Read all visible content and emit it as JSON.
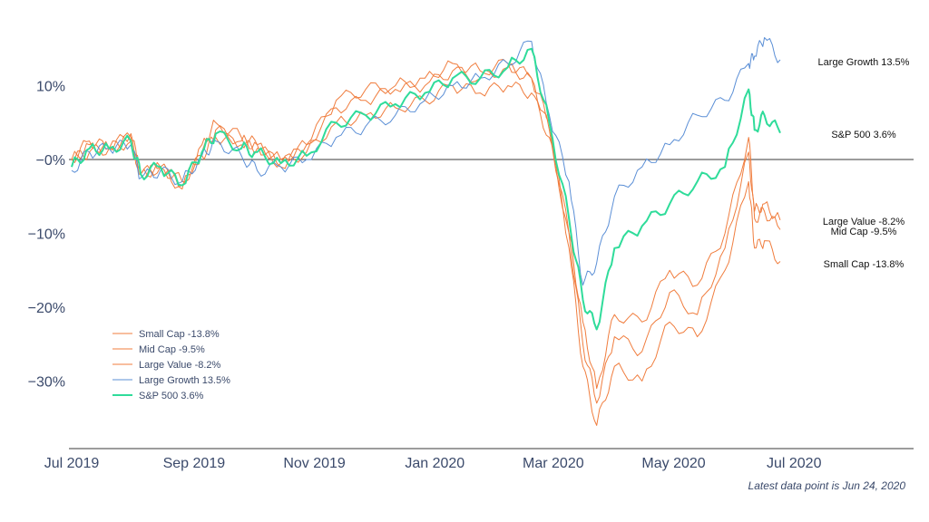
{
  "chart_data": {
    "type": "line",
    "xlabel": "",
    "ylabel": "",
    "ylim": [
      -39,
      17
    ],
    "x_ticks": [
      "Jul 2019",
      "Sep 2019",
      "Nov 2019",
      "Jan 2020",
      "Mar 2020",
      "May 2020",
      "Jul 2020"
    ],
    "y_ticks": [
      {
        "value": 10,
        "label": "10%"
      },
      {
        "value": 0,
        "label": "−0%"
      },
      {
        "value": -10,
        "label": "−10%"
      },
      {
        "value": -20,
        "label": "−20%"
      },
      {
        "value": -30,
        "label": "−30%"
      }
    ],
    "footnote": "Latest data point is Jun 24, 2020",
    "x": [
      "2019-07-01",
      "2019-07-10",
      "2019-07-20",
      "2019-07-31",
      "2019-08-05",
      "2019-08-15",
      "2019-08-26",
      "2019-09-05",
      "2019-09-12",
      "2019-09-25",
      "2019-10-03",
      "2019-10-15",
      "2019-10-28",
      "2019-11-12",
      "2019-11-27",
      "2019-12-12",
      "2019-12-27",
      "2020-01-10",
      "2020-01-24",
      "2020-02-07",
      "2020-02-19",
      "2020-02-28",
      "2020-03-09",
      "2020-03-16",
      "2020-03-23",
      "2020-04-01",
      "2020-04-15",
      "2020-04-29",
      "2020-05-13",
      "2020-05-27",
      "2020-06-08",
      "2020-06-11",
      "2020-06-16",
      "2020-06-24"
    ],
    "series": [
      {
        "name": "Small Cap -13.8%",
        "color": "#f07d3e",
        "width": 1,
        "values": [
          0,
          2.5,
          1.5,
          3.5,
          -2,
          -1,
          -4,
          2,
          5,
          3,
          2,
          -1,
          2,
          8,
          9.5,
          10,
          11,
          13,
          12,
          13,
          11,
          5,
          -12,
          -28,
          -36,
          -28,
          -30,
          -22,
          -24,
          -15,
          -3,
          -12,
          -11,
          -13.8
        ]
      },
      {
        "name": "Mid Cap -9.5%",
        "color": "#f07d3e",
        "width": 1,
        "values": [
          0,
          2,
          1.5,
          3,
          -2,
          -1,
          -3.5,
          1,
          4,
          2.5,
          2,
          0,
          2,
          7,
          8,
          9.5,
          10,
          12,
          11,
          12.5,
          11,
          4,
          -10,
          -25,
          -33,
          -24,
          -26,
          -18,
          -21,
          -12,
          1,
          -8,
          -7,
          -9.5
        ]
      },
      {
        "name": "Large Value -8.2%",
        "color": "#f07d3e",
        "width": 1,
        "values": [
          0,
          1,
          1.5,
          2.5,
          -2,
          -1,
          -3,
          0.5,
          3,
          2,
          1.5,
          -0.5,
          1,
          5,
          6,
          7,
          8,
          10,
          9,
          10,
          9,
          3,
          -10,
          -22,
          -31,
          -21,
          -22,
          -15,
          -17,
          -10,
          3,
          -7,
          -6,
          -8.2
        ]
      },
      {
        "name": "Large Growth 13.5%",
        "color": "#5b8fd6",
        "width": 1,
        "values": [
          -1.5,
          1,
          1.5,
          2,
          -2.5,
          -1.5,
          -3,
          0.5,
          2.5,
          0.5,
          -1.5,
          -1,
          0,
          3,
          4.5,
          6,
          8,
          10,
          11,
          13,
          16,
          6,
          -3,
          -17,
          -14,
          -5,
          -1,
          2,
          6,
          8,
          13,
          14,
          16.5,
          13.5
        ]
      },
      {
        "name": "S&P 500 3.6%",
        "color": "#2fdc9a",
        "width": 2,
        "values": [
          -1,
          1.5,
          1.5,
          2.5,
          -2,
          -1,
          -3.5,
          1,
          3.5,
          1.5,
          1,
          -0.5,
          0.5,
          5,
          6,
          7.5,
          9,
          11,
          11,
          12.5,
          15,
          5,
          -8,
          -19,
          -23,
          -12,
          -9,
          -6,
          -3,
          -1,
          9.5,
          4,
          6,
          3.6
        ]
      }
    ],
    "end_labels": [
      {
        "text": "Large Growth 13.5%",
        "value": 13.5
      },
      {
        "text": "S&P 500 3.6%",
        "value": 3.6
      },
      {
        "text": "Large Value -8.2%",
        "value": -8.2
      },
      {
        "text": "Mid Cap -9.5%",
        "value": -9.5
      },
      {
        "text": "Small Cap -13.8%",
        "value": -13.8
      }
    ],
    "legend": {
      "placement": "lower-left",
      "entries": [
        "Small Cap -13.8%",
        "Mid Cap -9.5%",
        "Large Value -8.2%",
        "Large Growth 13.5%",
        "S&P 500 3.6%"
      ]
    }
  }
}
